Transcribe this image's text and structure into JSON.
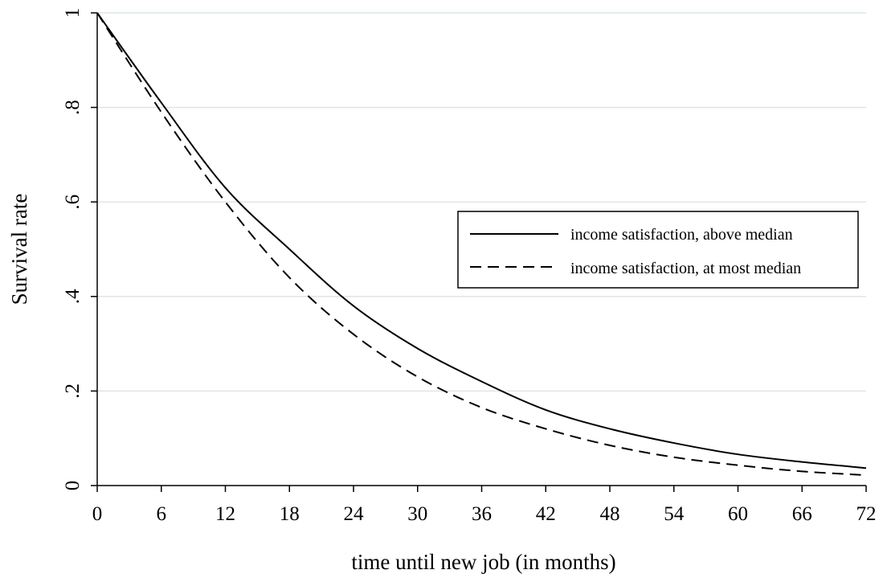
{
  "chart_data": {
    "type": "line",
    "title": "",
    "xlabel": "time until new job (in months)",
    "ylabel": "Survival rate",
    "xlim": [
      0,
      72
    ],
    "ylim": [
      0,
      1
    ],
    "x_ticks": [
      0,
      6,
      12,
      18,
      24,
      30,
      36,
      42,
      48,
      54,
      60,
      66,
      72
    ],
    "x_tick_labels": [
      "0",
      "6",
      "12",
      "18",
      "24",
      "30",
      "36",
      "42",
      "48",
      "54",
      "60",
      "66",
      "72"
    ],
    "y_ticks": [
      0,
      0.2,
      0.4,
      0.6,
      0.8,
      1
    ],
    "y_tick_labels": [
      "0",
      ".2",
      ".4",
      ".6",
      ".8",
      "1"
    ],
    "grid": "horizontal",
    "legend_position": "right",
    "x": [
      0,
      6,
      12,
      18,
      24,
      30,
      36,
      42,
      48,
      54,
      60,
      66,
      72
    ],
    "series": [
      {
        "name": "income satisfaction, above median",
        "style": "solid",
        "color": "#000000",
        "values": [
          1.0,
          0.81,
          0.63,
          0.5,
          0.38,
          0.29,
          0.22,
          0.16,
          0.12,
          0.09,
          0.066,
          0.05,
          0.037
        ]
      },
      {
        "name": "income satisfaction, at most median",
        "style": "dashed",
        "color": "#000000",
        "values": [
          1.0,
          0.79,
          0.6,
          0.44,
          0.32,
          0.23,
          0.165,
          0.12,
          0.085,
          0.06,
          0.043,
          0.03,
          0.022
        ]
      }
    ]
  }
}
